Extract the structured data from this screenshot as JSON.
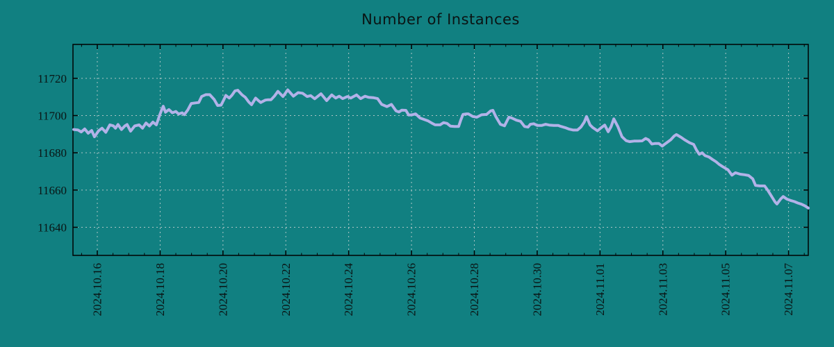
{
  "title": "Number of Instances",
  "colors": {
    "background": "#118081",
    "line": "#b2b2e8",
    "grid": "#aec6c6",
    "frame": "#000000",
    "text": "#0a1414"
  },
  "chart_data": {
    "type": "line",
    "title": "Number of Instances",
    "legend": false,
    "grid": true,
    "x_axis": {
      "epoch": "days since 2024-10-15 00:00",
      "range_days": [
        0.226,
        23.628
      ],
      "tick_days": [
        1,
        3,
        5,
        7,
        9,
        11,
        13,
        15,
        17,
        19,
        21,
        23
      ],
      "tick_labels": [
        "2024.10.16",
        "2024.10.18",
        "2024.10.20",
        "2024.10.22",
        "2024.10.24",
        "2024.10.26",
        "2024.10.28",
        "2024.10.30",
        "2024.11.01",
        "2024.11.03",
        "2024.11.05",
        "2024.11.07"
      ],
      "minor_tick_interval_days": 0.5
    },
    "y_axis": {
      "range": [
        11624.9,
        11738.2
      ],
      "ticks": [
        11640,
        11660,
        11680,
        11700,
        11720
      ],
      "tick_labels": [
        "11640",
        "11660",
        "11680",
        "11700",
        "11720"
      ]
    },
    "series": [
      {
        "name": "instances",
        "x_days": [
          0.25,
          0.38,
          0.49,
          0.6,
          0.71,
          0.82,
          0.91,
          1.04,
          1.15,
          1.27,
          1.4,
          1.51,
          1.58,
          1.66,
          1.77,
          1.88,
          1.95,
          2.06,
          2.19,
          2.33,
          2.44,
          2.55,
          2.66,
          2.77,
          2.88,
          2.99,
          3.06,
          3.1,
          3.17,
          3.28,
          3.39,
          3.5,
          3.59,
          3.7,
          3.77,
          3.88,
          3.99,
          4.12,
          4.23,
          4.32,
          4.45,
          4.58,
          4.72,
          4.83,
          4.94,
          5.03,
          5.09,
          5.2,
          5.29,
          5.38,
          5.47,
          5.6,
          5.71,
          5.82,
          5.91,
          6.04,
          6.13,
          6.2,
          6.35,
          6.44,
          6.53,
          6.64,
          6.75,
          6.91,
          7.06,
          7.24,
          7.39,
          7.53,
          7.68,
          7.79,
          7.92,
          8.12,
          8.3,
          8.46,
          8.59,
          8.7,
          8.81,
          8.96,
          9.07,
          9.25,
          9.38,
          9.52,
          9.63,
          9.78,
          9.92,
          10.05,
          10.22,
          10.36,
          10.51,
          10.6,
          10.69,
          10.82,
          10.91,
          11.02,
          11.13,
          11.27,
          11.4,
          11.53,
          11.64,
          11.75,
          11.91,
          12.02,
          12.13,
          12.24,
          12.37,
          12.5,
          12.57,
          12.64,
          12.75,
          12.81,
          12.95,
          13.08,
          13.23,
          13.39,
          13.52,
          13.59,
          13.68,
          13.83,
          13.96,
          14.1,
          14.19,
          14.34,
          14.47,
          14.6,
          14.71,
          14.78,
          14.89,
          15.0,
          15.15,
          15.27,
          15.38,
          15.53,
          15.67,
          15.75,
          15.89,
          16.02,
          16.15,
          16.28,
          16.39,
          16.5,
          16.57,
          16.68,
          16.77,
          16.86,
          16.92,
          17.04,
          17.15,
          17.26,
          17.35,
          17.44,
          17.57,
          17.7,
          17.83,
          17.94,
          18.08,
          18.21,
          18.34,
          18.45,
          18.54,
          18.65,
          18.76,
          18.87,
          18.98,
          19.09,
          19.25,
          19.36,
          19.43,
          19.58,
          19.69,
          19.85,
          19.98,
          20.07,
          20.16,
          20.25,
          20.34,
          20.47,
          20.58,
          20.69,
          20.8,
          20.91,
          21.07,
          21.2,
          21.31,
          21.46,
          21.6,
          21.73,
          21.86,
          21.95,
          22.08,
          22.24,
          22.35,
          22.46,
          22.57,
          22.63,
          22.75,
          22.83,
          22.94,
          23.08,
          23.19,
          23.3,
          23.41,
          23.52,
          23.63
        ],
        "values": [
          11692.5,
          11692.3,
          11691.2,
          11692.8,
          11690.5,
          11692.0,
          11688.6,
          11691.8,
          11693.2,
          11691.0,
          11695.0,
          11694.5,
          11693.2,
          11695.2,
          11692.5,
          11694.5,
          11695.2,
          11691.6,
          11694.4,
          11695.0,
          11693.2,
          11696.0,
          11694.4,
          11696.5,
          11695.0,
          11700.5,
          11703.5,
          11705.0,
          11701.8,
          11703.2,
          11701.5,
          11702.2,
          11700.8,
          11701.5,
          11700.5,
          11703.0,
          11706.5,
          11706.8,
          11707.0,
          11710.2,
          11711.2,
          11711.2,
          11708.6,
          11705.4,
          11705.6,
          11708.6,
          11710.8,
          11709.4,
          11711.0,
          11713.2,
          11713.6,
          11711.2,
          11709.8,
          11707.3,
          11705.8,
          11709.4,
          11708.0,
          11707.0,
          11708.3,
          11708.5,
          11708.5,
          11710.5,
          11713.0,
          11710.2,
          11713.8,
          11710.4,
          11712.3,
          11712.0,
          11710.2,
          11710.7,
          11709.0,
          11711.7,
          11708.0,
          11711.1,
          11709.4,
          11710.4,
          11709.1,
          11710.2,
          11709.4,
          11711.1,
          11709.1,
          11710.4,
          11709.8,
          11709.6,
          11709.1,
          11706.0,
          11704.8,
          11706.0,
          11702.5,
          11701.9,
          11702.9,
          11702.8,
          11700.3,
          11700.4,
          11700.9,
          11698.7,
          11697.9,
          11697.1,
          11696.0,
          11695.0,
          11695.0,
          11696.2,
          11695.8,
          11694.3,
          11694.1,
          11694.1,
          11697.7,
          11700.6,
          11700.9,
          11700.9,
          11699.5,
          11699.1,
          11700.4,
          11700.6,
          11702.5,
          11702.8,
          11699.5,
          11695.3,
          11694.5,
          11699.1,
          11698.7,
          11697.5,
          11696.9,
          11694.1,
          11693.8,
          11695.3,
          11695.6,
          11694.7,
          11694.7,
          11695.3,
          11694.9,
          11694.7,
          11694.7,
          11694.2,
          11693.5,
          11692.7,
          11692.2,
          11692.2,
          11693.8,
          11696.5,
          11699.5,
          11695.0,
          11693.5,
          11692.5,
          11691.8,
          11693.5,
          11694.9,
          11691.3,
          11694.0,
          11698.2,
          11694.0,
          11688.6,
          11686.5,
          11686.0,
          11686.3,
          11686.3,
          11686.4,
          11687.7,
          11687.0,
          11684.7,
          11685.0,
          11685.0,
          11683.6,
          11685.0,
          11687.0,
          11689.0,
          11689.8,
          11688.3,
          11687.0,
          11685.4,
          11684.5,
          11681.5,
          11679.2,
          11680.0,
          11678.5,
          11677.7,
          11676.4,
          11675.2,
          11673.7,
          11672.5,
          11670.9,
          11668.0,
          11669.3,
          11668.5,
          11668.2,
          11667.8,
          11666.0,
          11662.5,
          11662.2,
          11662.2,
          11659.6,
          11656.6,
          11653.6,
          11652.5,
          11655.2,
          11656.5,
          11655.2,
          11654.3,
          11653.8,
          11653.0,
          11652.4,
          11651.5,
          11650.3
        ]
      }
    ]
  }
}
